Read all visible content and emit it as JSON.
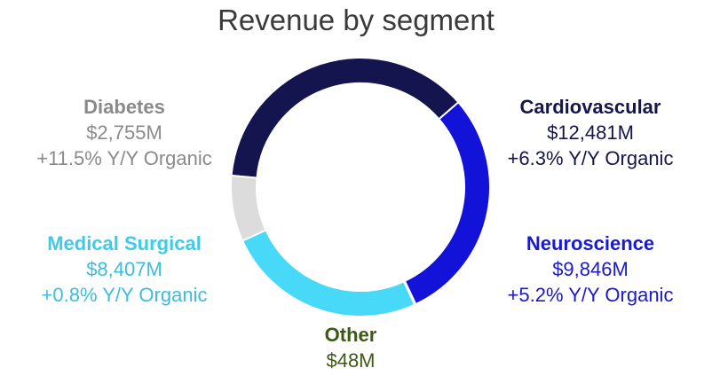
{
  "chart_data": {
    "type": "pie",
    "title": "Revenue by segment",
    "unit": "$M",
    "slices": [
      {
        "name": "Cardiovascular",
        "value": 12481,
        "value_label": "$12,481M",
        "growth": "+6.3% Y/Y Organic",
        "color": "#14144e"
      },
      {
        "name": "Neuroscience",
        "value": 9846,
        "value_label": "$9,846M",
        "growth": "+5.2% Y/Y Organic",
        "color": "#1212d8"
      },
      {
        "name": "Other",
        "value": 48,
        "value_label": "$48M",
        "growth": "",
        "color": "#3c5a14"
      },
      {
        "name": "Medical Surgical",
        "value": 8407,
        "value_label": "$8,407M",
        "growth": "+0.8% Y/Y Organic",
        "color": "#48d8f8"
      },
      {
        "name": "Diabetes",
        "value": 2755,
        "value_label": "$2,755M",
        "growth": "+11.5% Y/Y Organic",
        "color": "#dcdcdc"
      }
    ]
  }
}
